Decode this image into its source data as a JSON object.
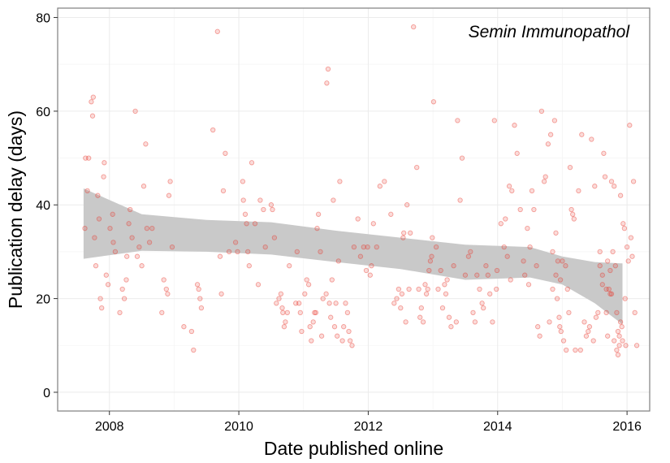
{
  "chart_data": {
    "type": "scatter",
    "annotation": "Semin Immunopathol",
    "xlabel": "Date published online",
    "ylabel": "Publication delay (days)",
    "xlim": [
      2007.2,
      2016.35
    ],
    "ylim": [
      -4,
      82
    ],
    "x_ticks": [
      2008,
      2010,
      2012,
      2014,
      2016
    ],
    "y_ticks": [
      0,
      20,
      40,
      60,
      80
    ],
    "grid": true,
    "point_color": "#e8392f",
    "smooth_band_color": "#c9c9c9",
    "smooth": {
      "x": [
        2007.6,
        2008.5,
        2009.5,
        2010.5,
        2011.5,
        2012.5,
        2013.5,
        2014.5,
        2015.0,
        2015.5,
        2015.93
      ],
      "lower": [
        28.5,
        30.2,
        30.0,
        29.4,
        27.8,
        26.3,
        24.0,
        24.5,
        23.0,
        19.0,
        14.5
      ],
      "upper": [
        43.5,
        38.0,
        36.8,
        36.3,
        34.5,
        33.0,
        31.5,
        31.0,
        29.0,
        27.8,
        27.5
      ]
    },
    "points": [
      [
        2007.62,
        35
      ],
      [
        2007.63,
        50
      ],
      [
        2007.66,
        43
      ],
      [
        2007.68,
        50
      ],
      [
        2007.72,
        62
      ],
      [
        2007.74,
        59
      ],
      [
        2007.75,
        63
      ],
      [
        2007.77,
        33
      ],
      [
        2007.79,
        27
      ],
      [
        2007.82,
        42
      ],
      [
        2007.84,
        37
      ],
      [
        2007.86,
        20
      ],
      [
        2007.88,
        18
      ],
      [
        2007.91,
        46
      ],
      [
        2007.92,
        49
      ],
      [
        2007.95,
        25
      ],
      [
        2007.98,
        23
      ],
      [
        2008.01,
        35
      ],
      [
        2008.05,
        38
      ],
      [
        2008.06,
        32
      ],
      [
        2008.09,
        30
      ],
      [
        2008.16,
        17
      ],
      [
        2008.2,
        22
      ],
      [
        2008.23,
        20
      ],
      [
        2008.26,
        24
      ],
      [
        2008.27,
        29
      ],
      [
        2008.3,
        36
      ],
      [
        2008.32,
        39
      ],
      [
        2008.35,
        33
      ],
      [
        2008.4,
        60
      ],
      [
        2008.43,
        29
      ],
      [
        2008.46,
        31
      ],
      [
        2008.5,
        27
      ],
      [
        2008.53,
        44
      ],
      [
        2008.56,
        53
      ],
      [
        2008.58,
        35
      ],
      [
        2008.62,
        32
      ],
      [
        2008.66,
        35
      ],
      [
        2008.81,
        17
      ],
      [
        2008.84,
        24
      ],
      [
        2008.88,
        22
      ],
      [
        2008.9,
        21
      ],
      [
        2008.92,
        42
      ],
      [
        2008.94,
        45
      ],
      [
        2008.97,
        31
      ],
      [
        2009.15,
        14
      ],
      [
        2009.27,
        13
      ],
      [
        2009.3,
        9
      ],
      [
        2009.36,
        23
      ],
      [
        2009.38,
        22
      ],
      [
        2009.4,
        20
      ],
      [
        2009.42,
        18
      ],
      [
        2009.6,
        56
      ],
      [
        2009.67,
        77
      ],
      [
        2009.71,
        29
      ],
      [
        2009.73,
        21
      ],
      [
        2009.76,
        43
      ],
      [
        2009.79,
        51
      ],
      [
        2009.85,
        30
      ],
      [
        2009.95,
        32
      ],
      [
        2009.98,
        30
      ],
      [
        2010.06,
        45
      ],
      [
        2010.07,
        41
      ],
      [
        2010.1,
        38
      ],
      [
        2010.12,
        36
      ],
      [
        2010.14,
        30
      ],
      [
        2010.16,
        27
      ],
      [
        2010.2,
        49
      ],
      [
        2010.25,
        36
      ],
      [
        2010.3,
        23
      ],
      [
        2010.33,
        41
      ],
      [
        2010.38,
        39
      ],
      [
        2010.41,
        31
      ],
      [
        2010.5,
        40
      ],
      [
        2010.52,
        39
      ],
      [
        2010.55,
        33
      ],
      [
        2010.58,
        19
      ],
      [
        2010.62,
        20
      ],
      [
        2010.65,
        21
      ],
      [
        2010.67,
        18
      ],
      [
        2010.68,
        17
      ],
      [
        2010.7,
        14
      ],
      [
        2010.72,
        15
      ],
      [
        2010.75,
        17
      ],
      [
        2010.78,
        27
      ],
      [
        2010.88,
        19
      ],
      [
        2010.9,
        30
      ],
      [
        2010.93,
        19
      ],
      [
        2010.95,
        17
      ],
      [
        2010.97,
        13
      ],
      [
        2011.02,
        21
      ],
      [
        2011.05,
        24
      ],
      [
        2011.08,
        23
      ],
      [
        2011.1,
        14
      ],
      [
        2011.12,
        11
      ],
      [
        2011.15,
        15
      ],
      [
        2011.17,
        17
      ],
      [
        2011.19,
        17
      ],
      [
        2011.21,
        35
      ],
      [
        2011.23,
        38
      ],
      [
        2011.26,
        30
      ],
      [
        2011.28,
        12
      ],
      [
        2011.3,
        20
      ],
      [
        2011.35,
        21
      ],
      [
        2011.36,
        66
      ],
      [
        2011.38,
        69
      ],
      [
        2011.4,
        19
      ],
      [
        2011.42,
        16
      ],
      [
        2011.44,
        24
      ],
      [
        2011.46,
        41
      ],
      [
        2011.48,
        14
      ],
      [
        2011.5,
        19
      ],
      [
        2011.52,
        12
      ],
      [
        2011.54,
        28
      ],
      [
        2011.56,
        45
      ],
      [
        2011.6,
        11
      ],
      [
        2011.62,
        14
      ],
      [
        2011.65,
        19
      ],
      [
        2011.68,
        17
      ],
      [
        2011.7,
        13
      ],
      [
        2011.72,
        11
      ],
      [
        2011.75,
        10
      ],
      [
        2011.78,
        31
      ],
      [
        2011.84,
        37
      ],
      [
        2011.88,
        29
      ],
      [
        2011.93,
        31
      ],
      [
        2011.97,
        26
      ],
      [
        2011.99,
        31
      ],
      [
        2012.03,
        25
      ],
      [
        2012.05,
        27
      ],
      [
        2012.08,
        36
      ],
      [
        2012.13,
        31
      ],
      [
        2012.18,
        44
      ],
      [
        2012.25,
        45
      ],
      [
        2012.35,
        38
      ],
      [
        2012.4,
        19
      ],
      [
        2012.44,
        20
      ],
      [
        2012.47,
        22
      ],
      [
        2012.5,
        18
      ],
      [
        2012.52,
        21
      ],
      [
        2012.54,
        33
      ],
      [
        2012.55,
        34
      ],
      [
        2012.58,
        15
      ],
      [
        2012.6,
        40
      ],
      [
        2012.63,
        22
      ],
      [
        2012.65,
        34
      ],
      [
        2012.7,
        78
      ],
      [
        2012.75,
        48
      ],
      [
        2012.78,
        22
      ],
      [
        2012.8,
        16
      ],
      [
        2012.82,
        18
      ],
      [
        2012.85,
        15
      ],
      [
        2012.88,
        23
      ],
      [
        2012.9,
        21
      ],
      [
        2012.92,
        22
      ],
      [
        2012.94,
        26
      ],
      [
        2012.96,
        28
      ],
      [
        2012.98,
        29
      ],
      [
        2012.99,
        33
      ],
      [
        2013.01,
        62
      ],
      [
        2013.05,
        31
      ],
      [
        2013.08,
        22
      ],
      [
        2013.12,
        26
      ],
      [
        2013.15,
        18
      ],
      [
        2013.18,
        23
      ],
      [
        2013.2,
        21
      ],
      [
        2013.22,
        24
      ],
      [
        2013.25,
        16
      ],
      [
        2013.28,
        14
      ],
      [
        2013.32,
        27
      ],
      [
        2013.36,
        15
      ],
      [
        2013.38,
        58
      ],
      [
        2013.42,
        41
      ],
      [
        2013.45,
        50
      ],
      [
        2013.5,
        25
      ],
      [
        2013.55,
        29
      ],
      [
        2013.58,
        30
      ],
      [
        2013.62,
        17
      ],
      [
        2013.65,
        15
      ],
      [
        2013.68,
        25
      ],
      [
        2013.72,
        22
      ],
      [
        2013.76,
        19
      ],
      [
        2013.78,
        18
      ],
      [
        2013.82,
        27
      ],
      [
        2013.85,
        25
      ],
      [
        2013.88,
        21
      ],
      [
        2013.92,
        15
      ],
      [
        2013.95,
        58
      ],
      [
        2013.98,
        22
      ],
      [
        2013.99,
        26
      ],
      [
        2014.05,
        36
      ],
      [
        2014.1,
        31
      ],
      [
        2014.12,
        37
      ],
      [
        2014.15,
        29
      ],
      [
        2014.18,
        44
      ],
      [
        2014.2,
        24
      ],
      [
        2014.22,
        43
      ],
      [
        2014.26,
        57
      ],
      [
        2014.3,
        51
      ],
      [
        2014.35,
        39
      ],
      [
        2014.4,
        28
      ],
      [
        2014.42,
        25
      ],
      [
        2014.46,
        35
      ],
      [
        2014.48,
        23
      ],
      [
        2014.5,
        31
      ],
      [
        2014.53,
        43
      ],
      [
        2014.56,
        39
      ],
      [
        2014.6,
        27
      ],
      [
        2014.62,
        14
      ],
      [
        2014.65,
        12
      ],
      [
        2014.68,
        60
      ],
      [
        2014.72,
        45
      ],
      [
        2014.74,
        46
      ],
      [
        2014.78,
        53
      ],
      [
        2014.82,
        55
      ],
      [
        2014.85,
        30
      ],
      [
        2014.88,
        58
      ],
      [
        2014.9,
        34
      ],
      [
        2014.93,
        28
      ],
      [
        2014.95,
        16
      ],
      [
        2014.97,
        24
      ],
      [
        2015.0,
        28
      ],
      [
        2015.05,
        27
      ],
      [
        2015.08,
        22
      ],
      [
        2015.12,
        48
      ],
      [
        2015.14,
        39
      ],
      [
        2015.16,
        38
      ],
      [
        2015.18,
        37
      ],
      [
        2015.2,
        9
      ],
      [
        2015.25,
        43
      ],
      [
        2015.28,
        9
      ],
      [
        2015.3,
        55
      ],
      [
        2015.34,
        15
      ],
      [
        2015.37,
        12
      ],
      [
        2015.4,
        13
      ],
      [
        2015.42,
        14
      ],
      [
        2015.45,
        54
      ],
      [
        2015.48,
        11
      ],
      [
        2015.5,
        44
      ],
      [
        2015.52,
        16
      ],
      [
        2015.55,
        17
      ],
      [
        2015.58,
        30
      ],
      [
        2015.62,
        25
      ],
      [
        2015.64,
        51
      ],
      [
        2015.68,
        17
      ],
      [
        2015.7,
        12
      ],
      [
        2015.72,
        22
      ],
      [
        2015.74,
        21
      ],
      [
        2015.76,
        45
      ],
      [
        2015.78,
        30
      ],
      [
        2015.8,
        44
      ],
      [
        2015.82,
        27
      ],
      [
        2015.84,
        17
      ],
      [
        2015.86,
        13
      ],
      [
        2015.88,
        10
      ],
      [
        2015.9,
        42
      ],
      [
        2014.8,
        15
      ],
      [
        2014.85,
        22
      ],
      [
        2014.9,
        25
      ],
      [
        2014.92,
        20
      ],
      [
        2014.96,
        14
      ],
      [
        2014.98,
        13
      ],
      [
        2015.02,
        11
      ],
      [
        2015.06,
        9
      ],
      [
        2015.1,
        17
      ],
      [
        2015.58,
        27
      ],
      [
        2015.62,
        23
      ],
      [
        2015.66,
        46
      ],
      [
        2015.68,
        22
      ],
      [
        2015.7,
        28
      ],
      [
        2015.74,
        26
      ],
      [
        2015.76,
        21
      ],
      [
        2015.8,
        11
      ],
      [
        2015.84,
        9
      ],
      [
        2015.86,
        8
      ],
      [
        2015.88,
        12
      ],
      [
        2015.9,
        15
      ],
      [
        2015.92,
        14
      ],
      [
        2015.93,
        11
      ],
      [
        2015.94,
        36
      ],
      [
        2015.96,
        35
      ],
      [
        2015.97,
        20
      ],
      [
        2015.98,
        10
      ],
      [
        2016.0,
        31
      ],
      [
        2016.02,
        28
      ],
      [
        2016.04,
        57
      ],
      [
        2016.06,
        33
      ],
      [
        2016.08,
        29
      ],
      [
        2016.1,
        45
      ],
      [
        2016.12,
        17
      ],
      [
        2016.15,
        10
      ]
    ]
  }
}
